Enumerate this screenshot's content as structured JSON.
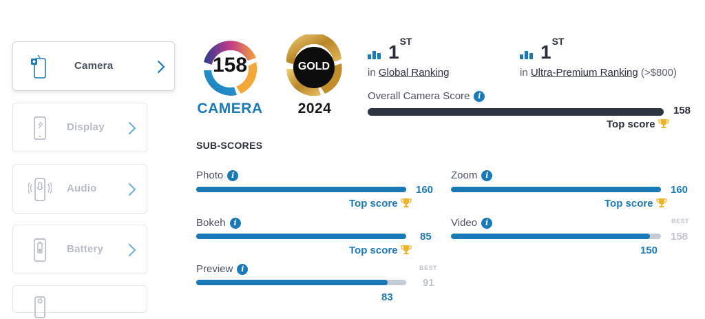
{
  "sidebar": {
    "items": [
      {
        "label": "Camera",
        "icon": "camera-phone-icon",
        "active": true
      },
      {
        "label": "Display",
        "icon": "display-phone-icon",
        "active": false
      },
      {
        "label": "Audio",
        "icon": "audio-phone-icon",
        "active": false
      },
      {
        "label": "Battery",
        "icon": "battery-phone-icon",
        "active": false
      }
    ]
  },
  "badges": {
    "camera": {
      "score": "158",
      "label": "CAMERA"
    },
    "gold": {
      "label": "GOLD",
      "year": "2024"
    }
  },
  "rankings": [
    {
      "rank": "1",
      "suffix": "ST",
      "prefix": "in ",
      "link": "Global Ranking",
      "note": ""
    },
    {
      "rank": "1",
      "suffix": "ST",
      "prefix": "in ",
      "link": "Ultra-Premium Ranking",
      "note": " (>$800)"
    }
  ],
  "overall": {
    "label": "Overall Camera Score",
    "score": "158",
    "fraction": 1.0,
    "top_score_label": "Top score"
  },
  "subscores": {
    "title": "SUB-SCORES",
    "photo": {
      "label": "Photo",
      "score": "160",
      "fraction": 1.0,
      "top_score_label": "Top score"
    },
    "zoom": {
      "label": "Zoom",
      "score": "160",
      "fraction": 1.0,
      "top_score_label": "Top score"
    },
    "bokeh": {
      "label": "Bokeh",
      "score": "85",
      "fraction": 1.0,
      "top_score_label": "Top score"
    },
    "video": {
      "label": "Video",
      "score": "150",
      "best_label": "BEST",
      "best_score": "158",
      "fraction": 0.949
    },
    "preview": {
      "label": "Preview",
      "score": "83",
      "best_label": "BEST",
      "best_score": "91",
      "fraction": 0.912
    }
  },
  "colors": {
    "accent": "#1a7ab8",
    "overall_bar": "#2e3440",
    "track": "#c5ccd6",
    "trophy": "#f0b428",
    "gold": "#c9972e"
  }
}
